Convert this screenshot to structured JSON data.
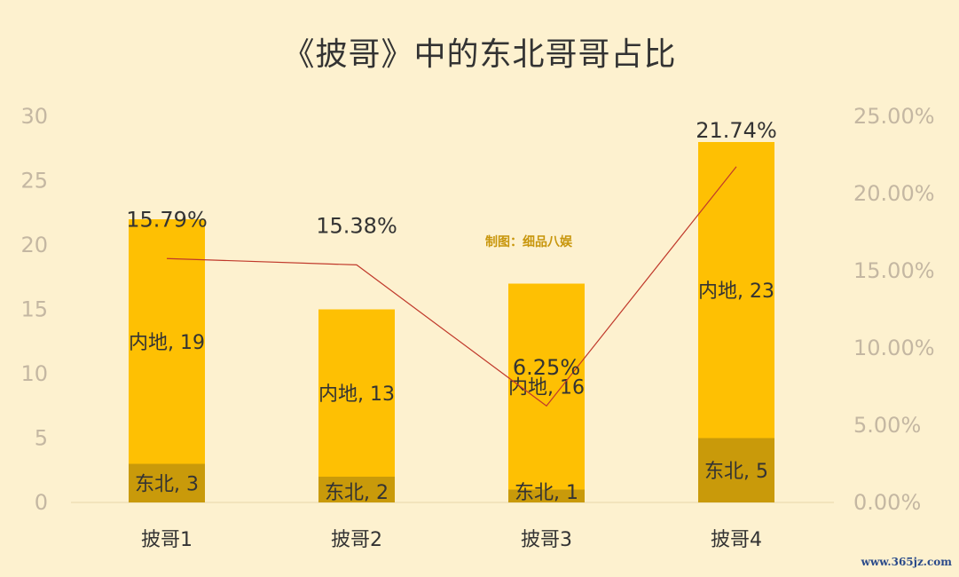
{
  "chart_data": {
    "type": "bar",
    "stacked": true,
    "title": "《披哥》中的东北哥哥占比",
    "categories": [
      "披哥1",
      "披哥2",
      "披哥3",
      "披哥4"
    ],
    "series": [
      {
        "name": "东北",
        "values": [
          3,
          2,
          1,
          5
        ],
        "color": "#c99a0a"
      },
      {
        "name": "内地",
        "values": [
          19,
          13,
          16,
          23
        ],
        "color": "#fec003"
      }
    ],
    "line_series": {
      "values": [
        15.79,
        15.38,
        6.25,
        21.74
      ],
      "labels": [
        "15.79%",
        "15.38%",
        "6.25%",
        "21.74%"
      ],
      "color": "#c0392b",
      "axis": "right"
    },
    "left_axis": {
      "ylim": [
        0,
        30
      ],
      "ticks": [
        "0",
        "5",
        "10",
        "15",
        "20",
        "25",
        "30"
      ]
    },
    "right_axis": {
      "ylim": [
        0,
        25
      ],
      "ticks": [
        "0.00%",
        "5.00%",
        "10.00%",
        "15.00%",
        "20.00%",
        "25.00%"
      ]
    },
    "grid": false,
    "legend": "none",
    "annotation": "制图：细品八娱"
  },
  "watermark": "www.365jz.com"
}
